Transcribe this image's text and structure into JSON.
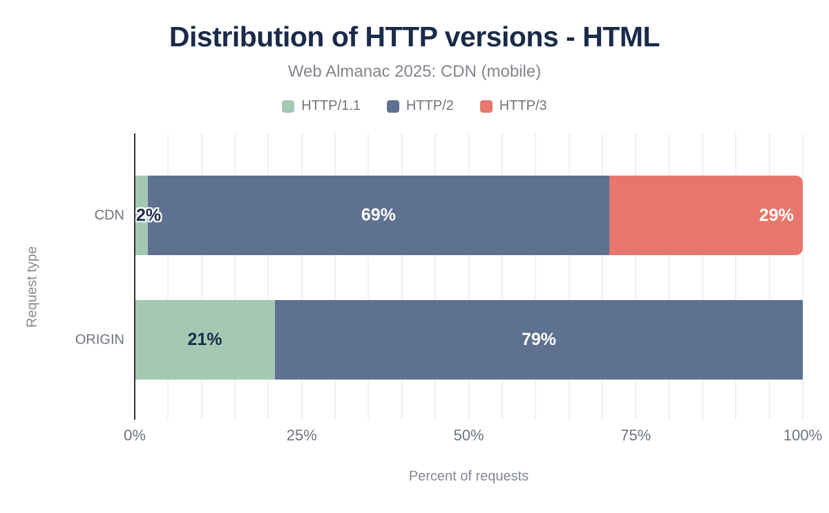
{
  "header": {
    "title": "Distribution of HTTP versions - HTML",
    "subtitle": "Web Almanac 2025: CDN (mobile)"
  },
  "chart_data": {
    "type": "bar",
    "stacked": true,
    "orientation": "horizontal",
    "title": "Distribution of HTTP versions - HTML",
    "subtitle": "Web Almanac 2025: CDN (mobile)",
    "categories": [
      "CDN",
      "ORIGIN"
    ],
    "series": [
      {
        "name": "HTTP/1.1",
        "color": "#a4c9b3",
        "values": [
          2,
          21
        ],
        "label_align": "center"
      },
      {
        "name": "HTTP/2",
        "color": "#5e7190",
        "values": [
          69,
          79
        ],
        "label_align": "center"
      },
      {
        "name": "HTTP/3",
        "color": "#e7766d",
        "values": [
          29,
          0
        ],
        "label_align": "end"
      }
    ],
    "data_label_format": "{value}%",
    "xlabel": "Percent of requests",
    "ylabel": "Request type",
    "xlim": [
      0,
      100
    ],
    "xticks": [
      0,
      25,
      50,
      75,
      100
    ],
    "xtick_labels": [
      "0%",
      "25%",
      "50%",
      "75%",
      "100%"
    ],
    "grid_interval": 5,
    "grid": true,
    "legend_position": "top"
  },
  "colors": {
    "title": "#1a2b49",
    "subtitle": "#81868d",
    "axis_text": "#6e747d",
    "axis_title": "#84898f",
    "axis_line": "#2f2f2f",
    "gridline": "#f0f0f0",
    "label_dark": "#1a2b49",
    "label_light": "#ffffff",
    "background": "#ffffff"
  }
}
